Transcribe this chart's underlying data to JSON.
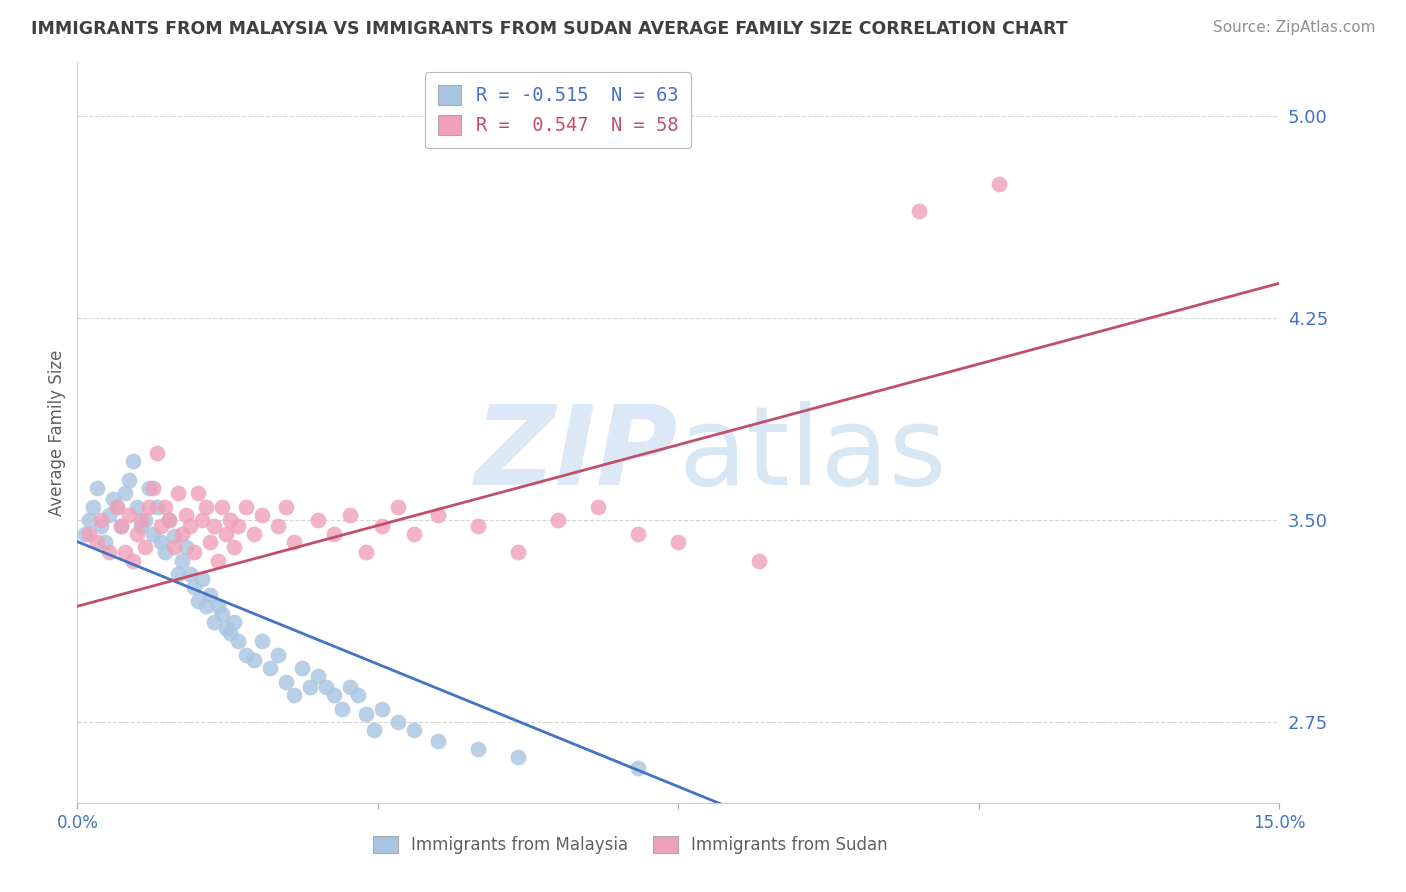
{
  "title": "IMMIGRANTS FROM MALAYSIA VS IMMIGRANTS FROM SUDAN AVERAGE FAMILY SIZE CORRELATION CHART",
  "source": "Source: ZipAtlas.com",
  "ylabel": "Average Family Size",
  "xlim": [
    0.0,
    15.0
  ],
  "ylim": [
    2.45,
    5.2
  ],
  "yticks": [
    2.75,
    3.5,
    4.25,
    5.0
  ],
  "xtick_positions": [
    0.0,
    3.75,
    7.5,
    11.25,
    15.0
  ],
  "xtick_labels": [
    "0.0%",
    "",
    "",
    "",
    "15.0%"
  ],
  "legend_r1": "R = -0.515  N = 63",
  "legend_r2": "R =  0.547  N = 58",
  "malaysia_color": "#a8c4e0",
  "sudan_color": "#f0a0b8",
  "trend_malaysia_color": "#4472c4",
  "trend_sudan_color": "#c0506a",
  "title_color": "#404040",
  "source_color": "#909090",
  "ytick_color": "#4472c4",
  "background_color": "#ffffff",
  "watermark_color": "#dce8f5",
  "malaysia_scatter_x": [
    0.1,
    0.15,
    0.2,
    0.25,
    0.3,
    0.35,
    0.4,
    0.45,
    0.5,
    0.55,
    0.6,
    0.65,
    0.7,
    0.75,
    0.8,
    0.85,
    0.9,
    0.95,
    1.0,
    1.05,
    1.1,
    1.15,
    1.2,
    1.25,
    1.3,
    1.35,
    1.4,
    1.45,
    1.5,
    1.55,
    1.6,
    1.65,
    1.7,
    1.75,
    1.8,
    1.85,
    1.9,
    1.95,
    2.0,
    2.1,
    2.2,
    2.3,
    2.4,
    2.5,
    2.6,
    2.7,
    2.8,
    2.9,
    3.0,
    3.1,
    3.2,
    3.3,
    3.4,
    3.5,
    3.6,
    3.7,
    3.8,
    4.0,
    4.2,
    4.5,
    5.0,
    5.5,
    7.0
  ],
  "malaysia_scatter_y": [
    3.45,
    3.5,
    3.55,
    3.62,
    3.48,
    3.42,
    3.52,
    3.58,
    3.55,
    3.48,
    3.6,
    3.65,
    3.72,
    3.55,
    3.48,
    3.5,
    3.62,
    3.45,
    3.55,
    3.42,
    3.38,
    3.5,
    3.44,
    3.3,
    3.35,
    3.4,
    3.3,
    3.25,
    3.2,
    3.28,
    3.18,
    3.22,
    3.12,
    3.18,
    3.15,
    3.1,
    3.08,
    3.12,
    3.05,
    3.0,
    2.98,
    3.05,
    2.95,
    3.0,
    2.9,
    2.85,
    2.95,
    2.88,
    2.92,
    2.88,
    2.85,
    2.8,
    2.88,
    2.85,
    2.78,
    2.72,
    2.8,
    2.75,
    2.72,
    2.68,
    2.65,
    2.62,
    2.58
  ],
  "sudan_scatter_x": [
    0.15,
    0.25,
    0.3,
    0.4,
    0.5,
    0.55,
    0.6,
    0.65,
    0.7,
    0.75,
    0.8,
    0.85,
    0.9,
    0.95,
    1.0,
    1.05,
    1.1,
    1.15,
    1.2,
    1.25,
    1.3,
    1.35,
    1.4,
    1.45,
    1.5,
    1.55,
    1.6,
    1.65,
    1.7,
    1.75,
    1.8,
    1.85,
    1.9,
    1.95,
    2.0,
    2.1,
    2.2,
    2.3,
    2.5,
    2.6,
    2.7,
    3.0,
    3.2,
    3.4,
    3.6,
    3.8,
    4.0,
    4.2,
    4.5,
    5.0,
    5.5,
    6.0,
    6.5,
    7.0,
    7.5,
    8.5,
    10.5,
    11.5
  ],
  "sudan_scatter_y": [
    3.45,
    3.42,
    3.5,
    3.38,
    3.55,
    3.48,
    3.38,
    3.52,
    3.35,
    3.45,
    3.5,
    3.4,
    3.55,
    3.62,
    3.75,
    3.48,
    3.55,
    3.5,
    3.4,
    3.6,
    3.45,
    3.52,
    3.48,
    3.38,
    3.6,
    3.5,
    3.55,
    3.42,
    3.48,
    3.35,
    3.55,
    3.45,
    3.5,
    3.4,
    3.48,
    3.55,
    3.45,
    3.52,
    3.48,
    3.55,
    3.42,
    3.5,
    3.45,
    3.52,
    3.38,
    3.48,
    3.55,
    3.45,
    3.52,
    3.48,
    3.38,
    3.5,
    3.55,
    3.45,
    3.42,
    3.35,
    4.65,
    4.75
  ]
}
